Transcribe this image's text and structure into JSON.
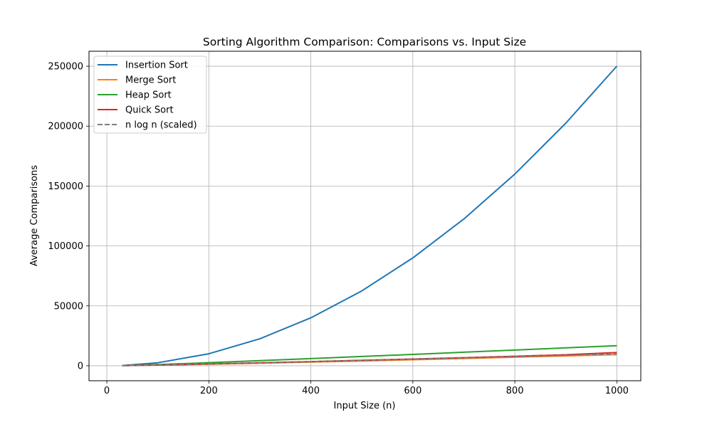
{
  "chart_data": {
    "type": "line",
    "title": "Sorting Algorithm Comparison: Comparisons vs. Input Size",
    "xlabel": "Input Size (n)",
    "ylabel": "Average Comparisons",
    "xlim": [
      -35,
      1047
    ],
    "ylim": [
      -12500,
      262500
    ],
    "xticks": [
      0,
      200,
      400,
      600,
      800,
      1000
    ],
    "yticks": [
      0,
      50000,
      100000,
      150000,
      200000,
      250000
    ],
    "xtick_labels": [
      "0",
      "200",
      "400",
      "600",
      "800",
      "1000"
    ],
    "ytick_labels": [
      "0",
      "50000",
      "100000",
      "150000",
      "200000",
      "250000"
    ],
    "grid": true,
    "legend_position": "top-left",
    "x": [
      30,
      100,
      200,
      300,
      400,
      500,
      600,
      700,
      800,
      900,
      1000
    ],
    "series": [
      {
        "name": "Insertion Sort",
        "color": "#1f77b4",
        "dash": false,
        "values": [
          225,
          2500,
          10000,
          22500,
          40000,
          62500,
          90000,
          122500,
          160000,
          202500,
          250000
        ]
      },
      {
        "name": "Merge Sort",
        "color": "#ff7f0e",
        "dash": false,
        "values": [
          100,
          540,
          1280,
          2130,
          3050,
          4030,
          5040,
          6090,
          7160,
          8250,
          9350
        ]
      },
      {
        "name": "Heap Sort",
        "color": "#2ca02c",
        "dash": false,
        "values": [
          200,
          1000,
          2600,
          4300,
          6000,
          7750,
          9500,
          11300,
          13100,
          14950,
          16800
        ]
      },
      {
        "name": "Quick Sort",
        "color": "#d62728",
        "dash": false,
        "values": [
          150,
          650,
          1500,
          2450,
          3500,
          4550,
          5600,
          6750,
          7950,
          9150,
          11000
        ]
      },
      {
        "name": "n log n (scaled)",
        "color": "#7f7f7f",
        "dash": true,
        "values": [
          140,
          650,
          1500,
          2400,
          3400,
          4400,
          5500,
          6500,
          7600,
          8700,
          9700
        ]
      }
    ]
  }
}
